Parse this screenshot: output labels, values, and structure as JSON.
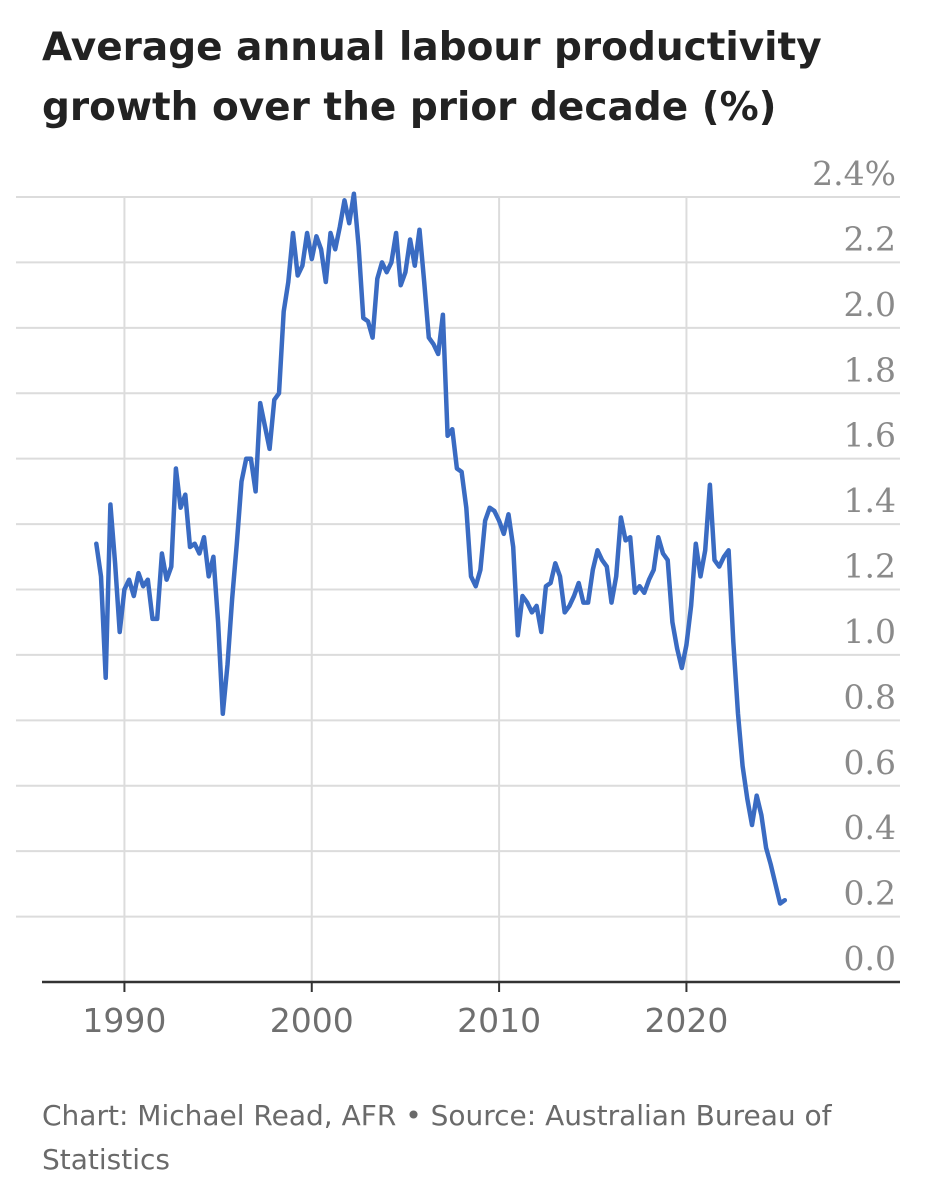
{
  "title": "Average annual labour productivity growth over the prior decade (%)",
  "source": "Chart: Michael Read, AFR • Source: Australian Bureau of Statistics",
  "colors": {
    "line": "#3a6bc2",
    "grid": "#dcdcdc",
    "axis": "#333333"
  },
  "chart_data": {
    "type": "line",
    "title": "Average annual labour productivity growth over the prior decade (%)",
    "xlabel": "",
    "ylabel": "",
    "xlim": [
      1985.6,
      2031.4
    ],
    "ylim": [
      0,
      2.4
    ],
    "grid": true,
    "legend": "none",
    "x_ticks": [
      {
        "value": 1990,
        "label": "1990"
      },
      {
        "value": 2000,
        "label": "2000"
      },
      {
        "value": 2010,
        "label": "2010"
      },
      {
        "value": 2020,
        "label": "2020"
      }
    ],
    "y_ticks": [
      {
        "value": 2.4,
        "label": "2.4%"
      },
      {
        "value": 2.2,
        "label": "2.2"
      },
      {
        "value": 2.0,
        "label": "2.0"
      },
      {
        "value": 1.8,
        "label": "1.8"
      },
      {
        "value": 1.6,
        "label": "1.6"
      },
      {
        "value": 1.4,
        "label": "1.4"
      },
      {
        "value": 1.2,
        "label": "1.2"
      },
      {
        "value": 1.0,
        "label": "1.0"
      },
      {
        "value": 0.8,
        "label": "0.8"
      },
      {
        "value": 0.6,
        "label": "0.6"
      },
      {
        "value": 0.4,
        "label": "0.4"
      },
      {
        "value": 0.2,
        "label": "0.2"
      },
      {
        "value": 0.0,
        "label": "0.0"
      }
    ],
    "series": [
      {
        "name": "",
        "x": [
          1988.5,
          1988.75,
          1989.0,
          1989.25,
          1989.5,
          1989.75,
          1990.0,
          1990.25,
          1990.5,
          1990.75,
          1991.0,
          1991.25,
          1991.5,
          1991.75,
          1992.0,
          1992.25,
          1992.5,
          1992.75,
          1993.0,
          1993.25,
          1993.5,
          1993.75,
          1994.0,
          1994.25,
          1994.5,
          1994.75,
          1995.0,
          1995.25,
          1995.5,
          1995.75,
          1996.0,
          1996.25,
          1996.5,
          1996.75,
          1997.0,
          1997.25,
          1997.5,
          1997.75,
          1998.0,
          1998.25,
          1998.5,
          1998.75,
          1999.0,
          1999.25,
          1999.5,
          1999.75,
          2000.0,
          2000.25,
          2000.5,
          2000.75,
          2001.0,
          2001.25,
          2001.5,
          2001.75,
          2002.0,
          2002.25,
          2002.5,
          2002.75,
          2003.0,
          2003.25,
          2003.5,
          2003.75,
          2004.0,
          2004.25,
          2004.5,
          2004.75,
          2005.0,
          2005.25,
          2005.5,
          2005.75,
          2006.0,
          2006.25,
          2006.5,
          2006.75,
          2007.0,
          2007.25,
          2007.5,
          2007.75,
          2008.0,
          2008.25,
          2008.5,
          2008.75,
          2009.0,
          2009.25,
          2009.5,
          2009.75,
          2010.0,
          2010.25,
          2010.5,
          2010.75,
          2011.0,
          2011.25,
          2011.5,
          2011.75,
          2012.0,
          2012.25,
          2012.5,
          2012.75,
          2013.0,
          2013.25,
          2013.5,
          2013.75,
          2014.0,
          2014.25,
          2014.5,
          2014.75,
          2015.0,
          2015.25,
          2015.5,
          2015.75,
          2016.0,
          2016.25,
          2016.5,
          2016.75,
          2017.0,
          2017.25,
          2017.5,
          2017.75,
          2018.0,
          2018.25,
          2018.5,
          2018.75,
          2019.0,
          2019.25,
          2019.5,
          2019.75,
          2020.0,
          2020.25,
          2020.5,
          2020.75,
          2021.0,
          2021.25,
          2021.5,
          2021.75,
          2022.0,
          2022.25,
          2022.5,
          2022.75,
          2023.0,
          2023.25,
          2023.5,
          2023.75,
          2024.0,
          2024.25,
          2024.5,
          2024.75,
          2025.0,
          2025.25
        ],
        "values": [
          1.34,
          1.24,
          0.93,
          1.46,
          1.28,
          1.07,
          1.2,
          1.23,
          1.18,
          1.25,
          1.21,
          1.23,
          1.11,
          1.11,
          1.31,
          1.23,
          1.27,
          1.57,
          1.45,
          1.49,
          1.33,
          1.34,
          1.31,
          1.36,
          1.24,
          1.3,
          1.1,
          0.82,
          0.97,
          1.17,
          1.34,
          1.53,
          1.6,
          1.6,
          1.5,
          1.77,
          1.7,
          1.63,
          1.78,
          1.8,
          2.05,
          2.14,
          2.29,
          2.16,
          2.19,
          2.29,
          2.21,
          2.28,
          2.24,
          2.14,
          2.29,
          2.24,
          2.31,
          2.39,
          2.32,
          2.41,
          2.25,
          2.03,
          2.02,
          1.97,
          2.15,
          2.2,
          2.17,
          2.2,
          2.29,
          2.13,
          2.17,
          2.27,
          2.19,
          2.3,
          2.14,
          1.97,
          1.95,
          1.92,
          2.04,
          1.67,
          1.69,
          1.57,
          1.56,
          1.45,
          1.24,
          1.21,
          1.26,
          1.41,
          1.45,
          1.44,
          1.41,
          1.37,
          1.43,
          1.33,
          1.06,
          1.18,
          1.16,
          1.13,
          1.15,
          1.07,
          1.21,
          1.22,
          1.28,
          1.24,
          1.13,
          1.15,
          1.18,
          1.22,
          1.16,
          1.16,
          1.26,
          1.32,
          1.29,
          1.27,
          1.16,
          1.24,
          1.42,
          1.35,
          1.36,
          1.19,
          1.21,
          1.19,
          1.23,
          1.26,
          1.36,
          1.31,
          1.29,
          1.1,
          1.02,
          0.96,
          1.03,
          1.15,
          1.34,
          1.24,
          1.32,
          1.52,
          1.29,
          1.27,
          1.3,
          1.32,
          1.04,
          0.82,
          0.66,
          0.56,
          0.48,
          0.57,
          0.51,
          0.41,
          0.36,
          0.3,
          0.24,
          0.25
        ]
      }
    ]
  }
}
